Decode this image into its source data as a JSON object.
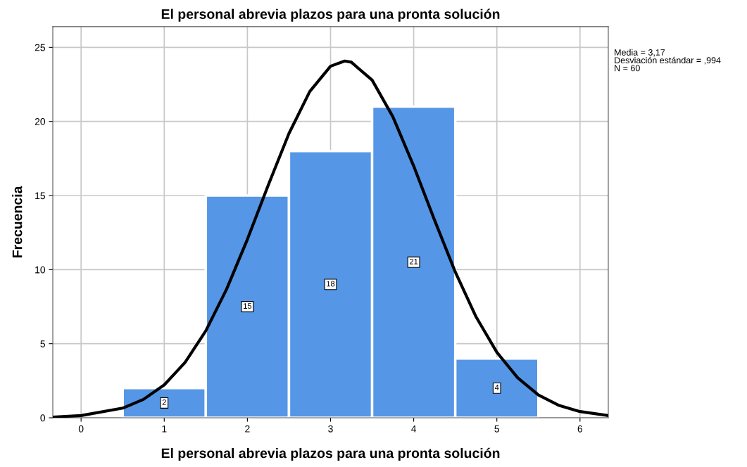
{
  "chart_data": {
    "type": "histogram",
    "title": "El personal abrevia plazos para una pronta solución",
    "xlabel": "El personal abrevia plazos para una pronta solución",
    "ylabel": "Frecuencia",
    "bins": [
      0.5,
      1.5,
      2.5,
      3.5,
      4.5,
      5.5
    ],
    "values": [
      2,
      15,
      18,
      21,
      4
    ],
    "color": "#5596e6",
    "value_labels": [
      "2",
      "15",
      "18",
      "21",
      "4"
    ],
    "series": [
      {
        "type": "line",
        "color": "#000000",
        "x": [
          -0.34,
          0,
          0.5,
          0.75,
          1,
          1.25,
          1.5,
          1.75,
          2,
          2.25,
          2.5,
          2.75,
          3,
          3.17,
          3.25,
          3.5,
          3.75,
          4,
          4.25,
          4.5,
          4.75,
          5,
          5.25,
          5.5,
          5.75,
          6,
          6.34
        ],
        "values": [
          0.05,
          0.15,
          0.65,
          1.24,
          2.22,
          3.73,
          5.87,
          8.68,
          12.04,
          15.69,
          19.19,
          22.02,
          23.73,
          24.08,
          24.0,
          22.79,
          20.31,
          16.99,
          13.35,
          9.84,
          6.81,
          4.42,
          2.7,
          1.54,
          0.83,
          0.42,
          0.15
        ]
      }
    ],
    "xlim": [
      -0.34,
      6.34
    ],
    "xticks": [
      0,
      1,
      2,
      3,
      4,
      5,
      6
    ],
    "ylim": [
      0,
      26.4
    ],
    "yticks": [
      0,
      5,
      10,
      15,
      20,
      25
    ],
    "grid": true,
    "annotations": [
      "Media = 3,17\nDesviación estándar = ,994\nN = 60"
    ]
  }
}
